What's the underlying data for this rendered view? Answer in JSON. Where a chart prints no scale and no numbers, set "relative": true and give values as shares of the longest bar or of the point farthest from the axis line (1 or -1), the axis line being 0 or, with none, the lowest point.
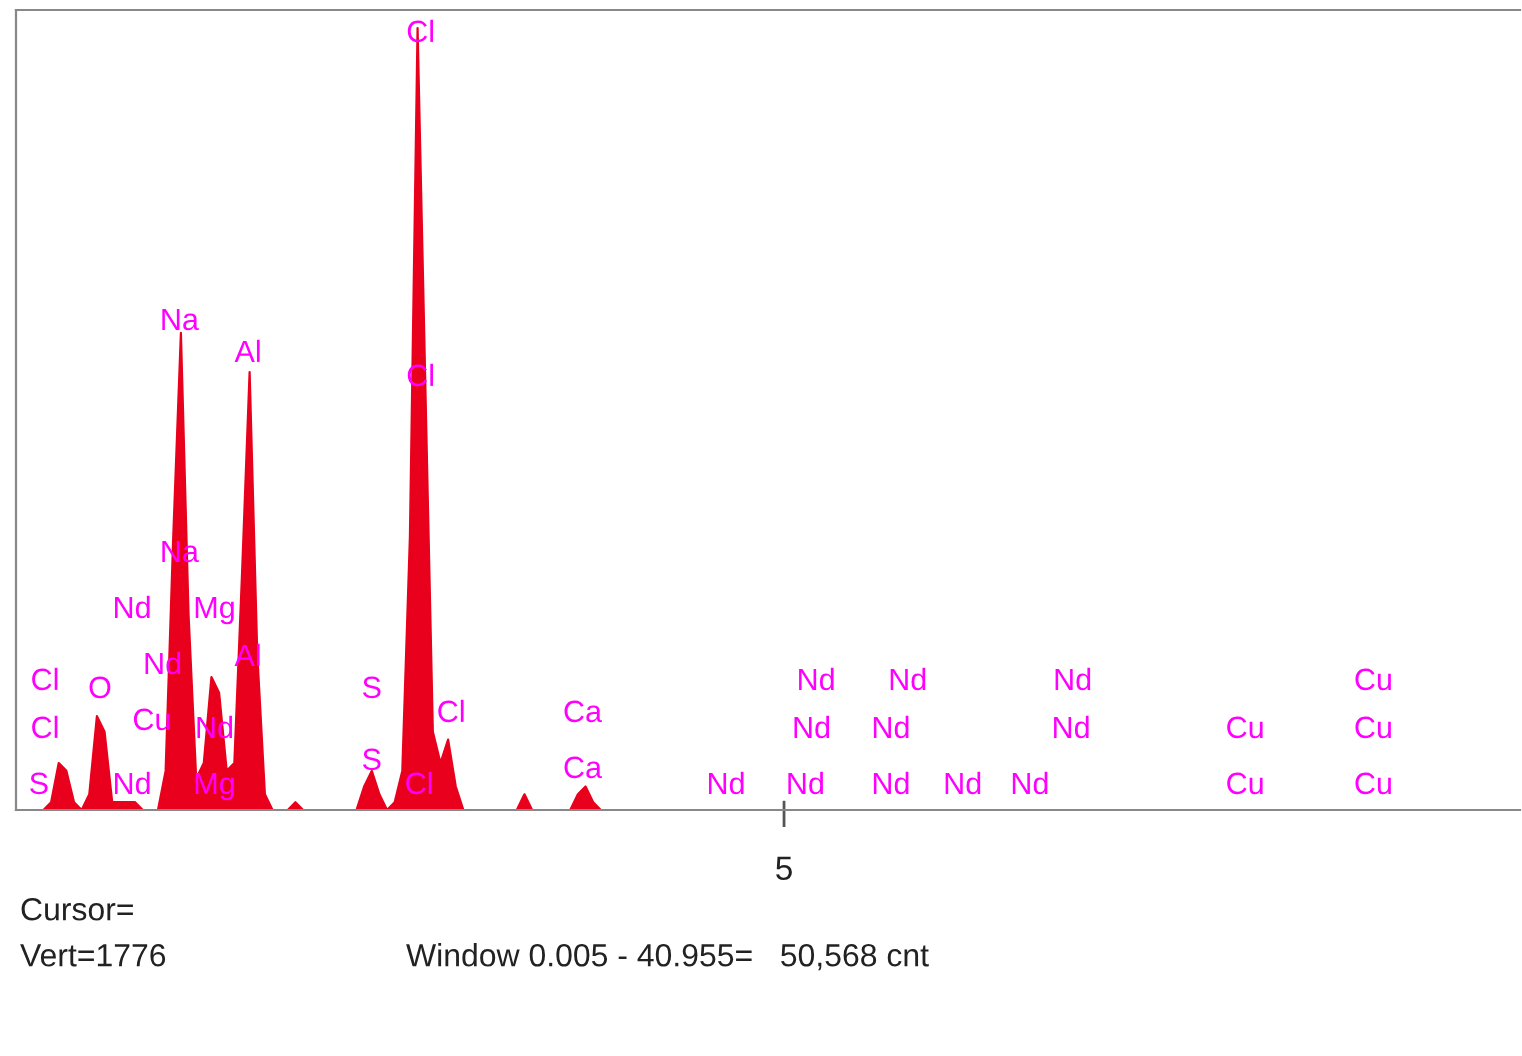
{
  "chart_data": {
    "type": "area",
    "relative": true,
    "categories": [
      null,
      null,
      null,
      null,
      null,
      null,
      null,
      null,
      null,
      null,
      null,
      null,
      null,
      null,
      null,
      null,
      null,
      null,
      null,
      null,
      null,
      null,
      null,
      null,
      null,
      null,
      null,
      null,
      null,
      null,
      null,
      null,
      null,
      null,
      null,
      null,
      null,
      null,
      null,
      null,
      null,
      null,
      null,
      null,
      null,
      null,
      null,
      null,
      null,
      null,
      null,
      null,
      null,
      null,
      null,
      null,
      null,
      null,
      null,
      null,
      null,
      null,
      null,
      null,
      null,
      null,
      null,
      null,
      null,
      null,
      null,
      null,
      null,
      null,
      null,
      null,
      null,
      null,
      null,
      null,
      null,
      null,
      null,
      null,
      null,
      null,
      null,
      null,
      null,
      null,
      null,
      null,
      null,
      null,
      null,
      null,
      null,
      null,
      null,
      null,
      null,
      null,
      null,
      null,
      null,
      null,
      null,
      null,
      null,
      null,
      null,
      null,
      null,
      null,
      null,
      null,
      null,
      null,
      null,
      null,
      null,
      null,
      null,
      null,
      null,
      null,
      null,
      null,
      null,
      null,
      null,
      null,
      null,
      null,
      null,
      null,
      null,
      null,
      null,
      null,
      null,
      null,
      null,
      null,
      null,
      null,
      null,
      null,
      null,
      null,
      null,
      null,
      null,
      null,
      null,
      null,
      null,
      null,
      null,
      null,
      null,
      null,
      null,
      null,
      null,
      null,
      null,
      null,
      null,
      null,
      null,
      null,
      null,
      null,
      null,
      null,
      null,
      null,
      null,
      null,
      null,
      null,
      null,
      null,
      null,
      null,
      null,
      null,
      null,
      null,
      null,
      null,
      null,
      null,
      null,
      null,
      null
    ],
    "series": [
      {
        "color": "#e8001c",
        "values": [
          0,
          0,
          0,
          0,
          0.01,
          0.06,
          0.05,
          0.01,
          0,
          0.02,
          0.12,
          0.1,
          0.01,
          0.01,
          0.01,
          0.01,
          0,
          0,
          0,
          0.05,
          0.35,
          0.61,
          0.25,
          0.04,
          0.06,
          0.17,
          0.15,
          0.05,
          0.06,
          0.3,
          0.56,
          0.2,
          0.02,
          0,
          0,
          0,
          0.01,
          0,
          0,
          0,
          0,
          0,
          0,
          0,
          0,
          0.03,
          0.05,
          0.02,
          0,
          0.01,
          0.05,
          0.35,
          1.0,
          0.55,
          0.1,
          0.06,
          0.09,
          0.03,
          0,
          0,
          0,
          0,
          0,
          0,
          0,
          0,
          0.02,
          0,
          0,
          0,
          0,
          0,
          0,
          0.02,
          0.03,
          0.01,
          0,
          0,
          0,
          0,
          0,
          0,
          0,
          0,
          0,
          0,
          0,
          0,
          0,
          0,
          0,
          0,
          0,
          0,
          0,
          0,
          0,
          0,
          0,
          0,
          0,
          0,
          0,
          0,
          0,
          0,
          0,
          0,
          0,
          0,
          0,
          0,
          0,
          0,
          0,
          0,
          0,
          0,
          0,
          0,
          0,
          0,
          0,
          0,
          0,
          0,
          0,
          0,
          0,
          0,
          0,
          0,
          0,
          0,
          0,
          0,
          0,
          0,
          0,
          0,
          0,
          0,
          0,
          0,
          0,
          0,
          0,
          0,
          0,
          0,
          0,
          0,
          0,
          0,
          0,
          0,
          0,
          0,
          0,
          0,
          0,
          0,
          0,
          0,
          0,
          0,
          0,
          0,
          0,
          0,
          0,
          0,
          0,
          0,
          0,
          0,
          0,
          0,
          0,
          0,
          0,
          0,
          0,
          0,
          0,
          0,
          0,
          0,
          0,
          0,
          0,
          0,
          0,
          0,
          0,
          0,
          0
        ]
      }
    ],
    "annotations": [
      "Cl",
      "Cl",
      "S",
      "O",
      "Nd",
      "Nd",
      "Cu",
      "Nd",
      "Na",
      "Na",
      "Mg",
      "Nd",
      "Mg",
      "Al",
      "Al",
      "S",
      "S",
      "Cl",
      "Cl",
      "Cl",
      "Cl",
      "Ca",
      "Ca",
      "Nd",
      "Nd",
      "Nd",
      "Nd",
      "Nd",
      "Nd",
      "Nd",
      "Nd",
      "Nd",
      "Nd",
      "Nd",
      "Cu",
      "Cu",
      "Cu",
      "Cu",
      "Cu",
      "5",
      "Cursor=",
      "Vert=1776",
      "Window 0.005 - 40.955=   50,568 cnt"
    ]
  }
}
